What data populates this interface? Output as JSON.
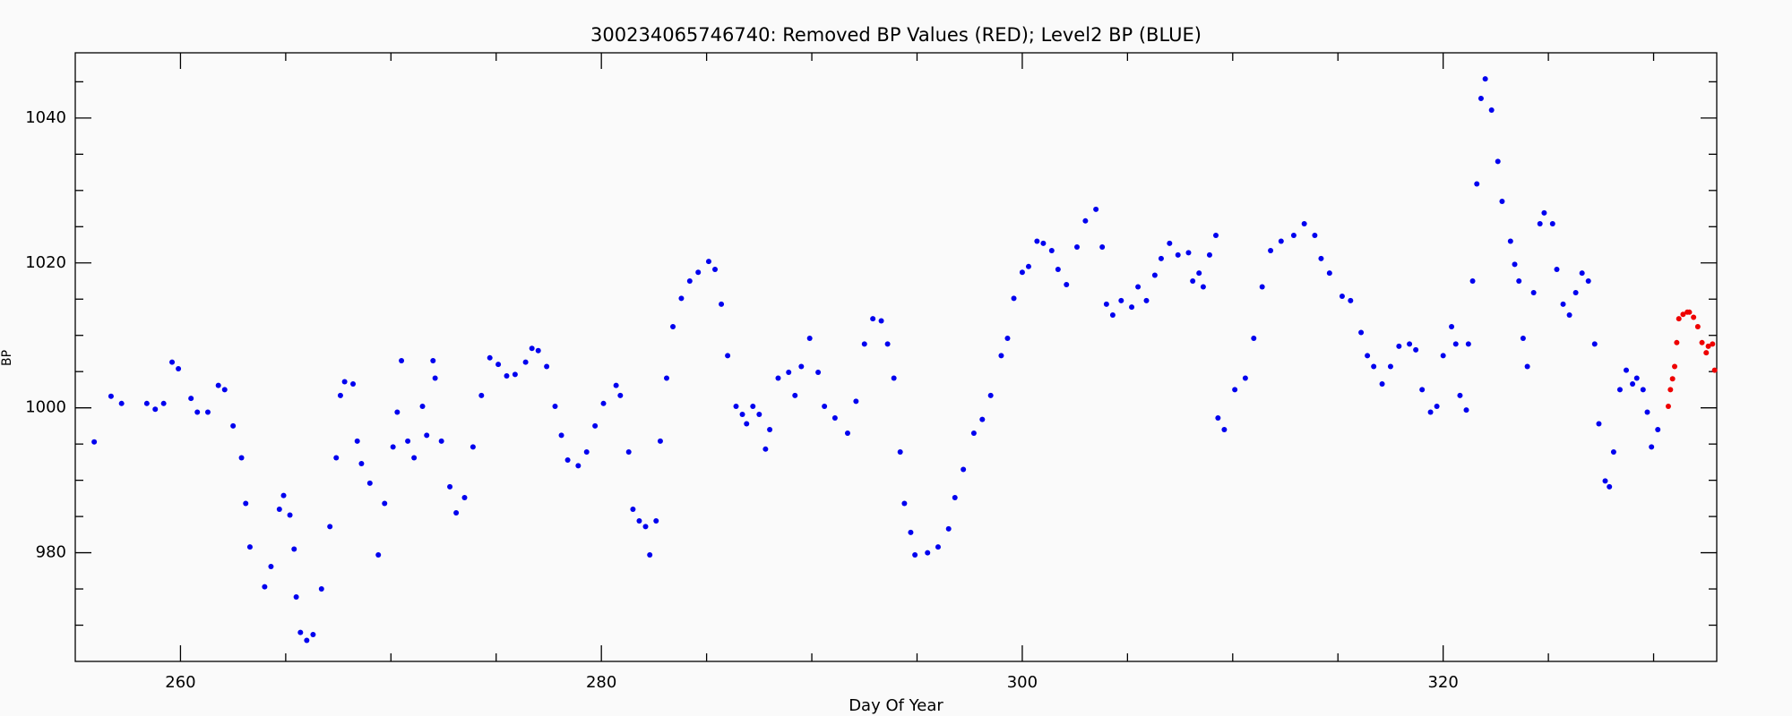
{
  "chart_data": {
    "type": "scatter",
    "title": "300234065746740: Removed BP Values (RED); Level2 BP (BLUE)",
    "xlabel": "Day Of Year",
    "ylabel": "BP",
    "xlim": [
      255,
      333
    ],
    "ylim": [
      965,
      1049
    ],
    "xticks": [
      260,
      280,
      300,
      320
    ],
    "yticks": [
      980,
      1000,
      1020,
      1040
    ],
    "xminorticks": [
      265,
      270,
      275,
      285,
      290,
      295,
      305,
      310,
      315,
      325,
      330
    ],
    "yminorticks": [
      970,
      975,
      985,
      990,
      995,
      1005,
      1010,
      1015,
      1025,
      1030,
      1035,
      1045
    ],
    "series": [
      {
        "color": "#0000ee",
        "x": [
          255.9,
          256.7,
          257.2,
          258.4,
          258.8,
          259.2,
          259.6,
          259.9,
          260.5,
          260.8,
          261.3,
          261.8,
          262.1,
          262.5,
          262.9,
          263.1,
          263.3,
          264.0,
          264.3,
          264.7,
          264.9,
          265.2,
          265.4,
          265.5,
          265.7,
          266.0,
          266.3,
          266.7,
          267.1,
          267.4,
          267.6,
          267.8,
          268.2,
          268.4,
          268.6,
          269.0,
          269.4,
          269.7,
          270.1,
          270.3,
          270.5,
          270.8,
          271.1,
          271.5,
          271.7,
          272.0,
          272.1,
          272.4,
          272.8,
          273.1,
          273.5,
          273.9,
          274.3,
          274.7,
          275.1,
          275.5,
          275.9,
          276.4,
          276.7,
          277.0,
          277.4,
          277.8,
          278.1,
          278.4,
          278.9,
          279.3,
          279.7,
          280.1,
          280.7,
          280.9,
          281.3,
          281.5,
          281.8,
          282.1,
          282.3,
          282.6,
          282.8,
          283.1,
          283.4,
          283.8,
          284.2,
          284.6,
          285.1,
          285.4,
          285.7,
          286.0,
          286.4,
          286.7,
          286.9,
          287.2,
          287.5,
          287.8,
          288.0,
          288.4,
          288.9,
          289.2,
          289.5,
          289.9,
          290.3,
          290.6,
          291.1,
          291.7,
          292.1,
          292.5,
          292.9,
          293.3,
          293.6,
          293.9,
          294.2,
          294.4,
          294.7,
          294.9,
          295.5,
          296.0,
          296.5,
          296.8,
          297.2,
          297.7,
          298.1,
          298.5,
          299.0,
          299.3,
          299.6,
          300.0,
          300.3,
          300.7,
          301.0,
          301.4,
          301.7,
          302.1,
          302.6,
          303.0,
          303.5,
          303.8,
          304.0,
          304.3,
          304.7,
          305.2,
          305.5,
          305.9,
          306.3,
          306.6,
          307.0,
          307.4,
          307.9,
          308.1,
          308.4,
          308.6,
          308.9,
          309.2,
          309.3,
          309.6,
          310.1,
          310.6,
          311.0,
          311.4,
          311.8,
          312.3,
          312.9,
          313.4,
          313.9,
          314.2,
          314.6,
          315.2,
          315.6,
          316.1,
          316.4,
          316.7,
          317.1,
          317.5,
          317.9,
          318.4,
          318.7,
          319.0,
          319.4,
          319.7,
          320.0,
          320.4,
          320.6,
          320.8,
          321.1,
          321.2,
          321.4,
          321.6,
          321.8,
          322.0,
          322.3,
          322.6,
          322.8,
          323.2,
          323.4,
          323.6,
          323.8,
          324.0,
          324.3,
          324.6,
          324.8,
          325.2,
          325.4,
          325.7,
          326.0,
          326.3,
          326.6,
          326.9,
          327.2,
          327.4,
          327.7,
          327.9,
          328.1,
          328.4,
          328.7,
          329.0,
          329.2,
          329.5,
          329.7,
          329.9,
          330.2
        ],
        "values": [
          995.3,
          1001.6,
          1000.6,
          1000.6,
          999.8,
          1000.6,
          1006.3,
          1005.4,
          1001.3,
          999.4,
          999.4,
          1003.1,
          1002.5,
          997.5,
          993.1,
          986.8,
          980.8,
          975.3,
          978.1,
          986,
          987.9,
          985.2,
          980.5,
          973.9,
          969,
          967.9,
          968.7,
          975,
          983.6,
          993.1,
          1001.7,
          1003.6,
          1003.3,
          995.4,
          992.3,
          989.6,
          979.7,
          986.8,
          994.6,
          999.4,
          1006.5,
          995.4,
          993.1,
          1000.2,
          996.2,
          1006.5,
          1004.1,
          995.4,
          989.1,
          985.5,
          987.6,
          994.6,
          1001.7,
          1006.9,
          1006,
          1004.4,
          1004.6,
          1006.3,
          1008.2,
          1007.9,
          1005.7,
          1000.2,
          996.2,
          992.8,
          992,
          993.9,
          997.5,
          1000.6,
          1003.1,
          1001.7,
          993.9,
          986,
          984.4,
          983.6,
          979.7,
          984.4,
          995.4,
          1004.1,
          1011.2,
          1015.1,
          1017.5,
          1018.7,
          1020.2,
          1019.1,
          1014.3,
          1007.2,
          1000.2,
          999.1,
          997.8,
          1000.2,
          999.1,
          994.3,
          997,
          1004.1,
          1004.9,
          1001.7,
          1005.7,
          1009.6,
          1004.9,
          1000.2,
          998.6,
          996.5,
          1000.9,
          1008.8,
          1012.3,
          1012,
          1008.8,
          1004.1,
          993.9,
          986.8,
          982.8,
          979.7,
          980,
          980.8,
          983.3,
          987.6,
          991.5,
          996.5,
          998.4,
          1001.7,
          1007.2,
          1009.6,
          1015.1,
          1018.7,
          1019.5,
          1023,
          1022.7,
          1021.7,
          1019.1,
          1017,
          1022.2,
          1025.8,
          1027.4,
          1022.2,
          1014.3,
          1012.8,
          1014.8,
          1013.9,
          1016.7,
          1014.8,
          1018.3,
          1020.6,
          1022.7,
          1021.1,
          1021.4,
          1017.5,
          1018.6,
          1016.7,
          1021.1,
          1023.8,
          998.6,
          997,
          1002.5,
          1004.1,
          1009.6,
          1016.7,
          1021.7,
          1023,
          1023.8,
          1025.4,
          1023.8,
          1020.6,
          1018.6,
          1015.4,
          1014.8,
          1010.4,
          1007.2,
          1005.7,
          1003.3,
          1005.7,
          1008.5,
          1008.8,
          1008,
          1002.5,
          999.4,
          1000.2,
          1007.2,
          1011.2,
          1008.8,
          1001.7,
          999.7,
          1008.8,
          1017.5,
          1030.9,
          1042.7,
          1045.4,
          1041.1,
          1034,
          1028.5,
          1023,
          1019.8,
          1017.5,
          1009.6,
          1005.7,
          1015.9,
          1025.4,
          1026.9,
          1025.4,
          1019.1,
          1014.3,
          1012.8,
          1015.9,
          1018.6,
          1017.5,
          1008.8,
          997.8,
          989.9,
          989.1,
          993.9,
          1002.5,
          1005.2,
          1003.3,
          1004.1,
          1002.5,
          999.4,
          994.6,
          997
        ]
      },
      {
        "color": "#ee0000",
        "x": [
          330.7,
          330.8,
          330.9,
          331.0,
          331.1,
          331.2,
          331.4,
          331.6,
          331.7,
          331.9,
          332.1,
          332.3,
          332.5,
          332.6,
          332.8,
          332.9
        ],
        "values": [
          1000.2,
          1002.5,
          1004,
          1005.7,
          1009,
          1012.3,
          1012.9,
          1013.2,
          1013.2,
          1012.5,
          1011.2,
          1009,
          1007.6,
          1008.5,
          1008.8,
          1005.2
        ]
      }
    ]
  }
}
